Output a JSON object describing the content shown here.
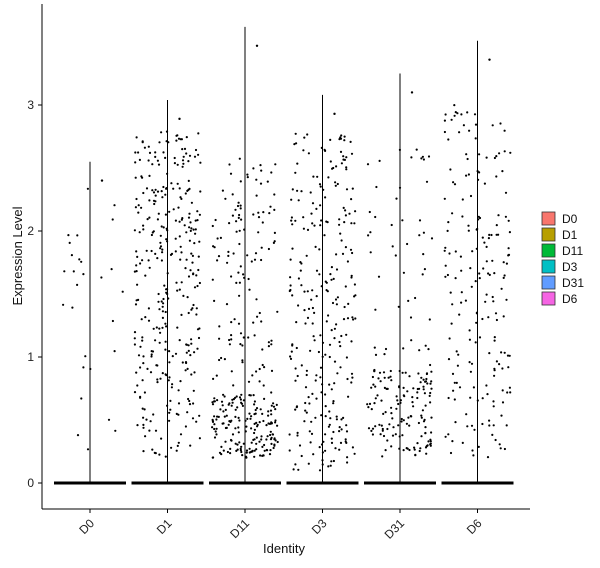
{
  "chart_data": {
    "type": "violin",
    "xlabel": "Identity",
    "ylabel": "Expression Level",
    "categories": [
      "D0",
      "D1",
      "D11",
      "D3",
      "D31",
      "D6"
    ],
    "ylim": [
      -0.2,
      3.8
    ],
    "yticks": [
      0,
      1,
      2,
      3
    ],
    "grid": false,
    "legend_position": "right",
    "point_color": "#000000",
    "series": [
      {
        "name": "D0",
        "color": "#F8766D",
        "max": 2.55
      },
      {
        "name": "D1",
        "color": "#B79F00",
        "max": 3.04
      },
      {
        "name": "D11",
        "color": "#00BA38",
        "max": 3.62
      },
      {
        "name": "D3",
        "color": "#00BFC4",
        "max": 3.08
      },
      {
        "name": "D31",
        "color": "#619CFF",
        "max": 3.25
      },
      {
        "name": "D6",
        "color": "#F564E3",
        "max": 3.51
      }
    ]
  }
}
